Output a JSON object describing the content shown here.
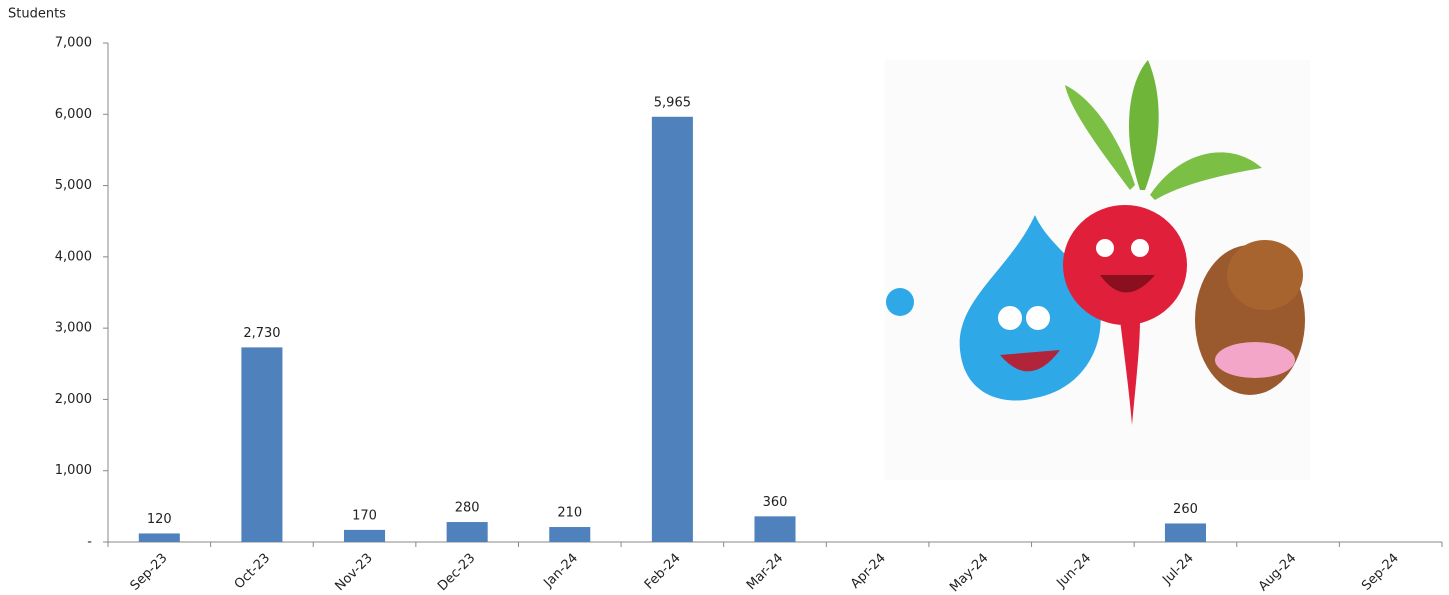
{
  "chart_data": {
    "type": "bar",
    "y_label": "Students",
    "categories": [
      "Sep-23",
      "Oct-23",
      "Nov-23",
      "Dec-23",
      "Jan-24",
      "Feb-24",
      "Mar-24",
      "Apr-24",
      "May-24",
      "Jun-24",
      "Jul-24",
      "Aug-24",
      "Sep-24"
    ],
    "values": [
      120,
      2730,
      170,
      280,
      210,
      5965,
      360,
      null,
      null,
      null,
      260,
      null,
      null
    ],
    "value_labels": [
      "120",
      "2,730",
      "170",
      "280",
      "210",
      "5,965",
      "360",
      null,
      null,
      null,
      "260",
      null,
      null
    ],
    "color": "#4f81bd",
    "ylim": [
      0,
      7000
    ],
    "yticks": [
      {
        "value": 0,
        "label": "-"
      },
      {
        "value": 1000,
        "label": "1,000"
      },
      {
        "value": 2000,
        "label": "2,000"
      },
      {
        "value": 3000,
        "label": "3,000"
      },
      {
        "value": 4000,
        "label": "4,000"
      },
      {
        "value": 5000,
        "label": "5,000"
      },
      {
        "value": 6000,
        "label": "6,000"
      },
      {
        "value": 7000,
        "label": "7,000"
      }
    ],
    "grid": false
  }
}
